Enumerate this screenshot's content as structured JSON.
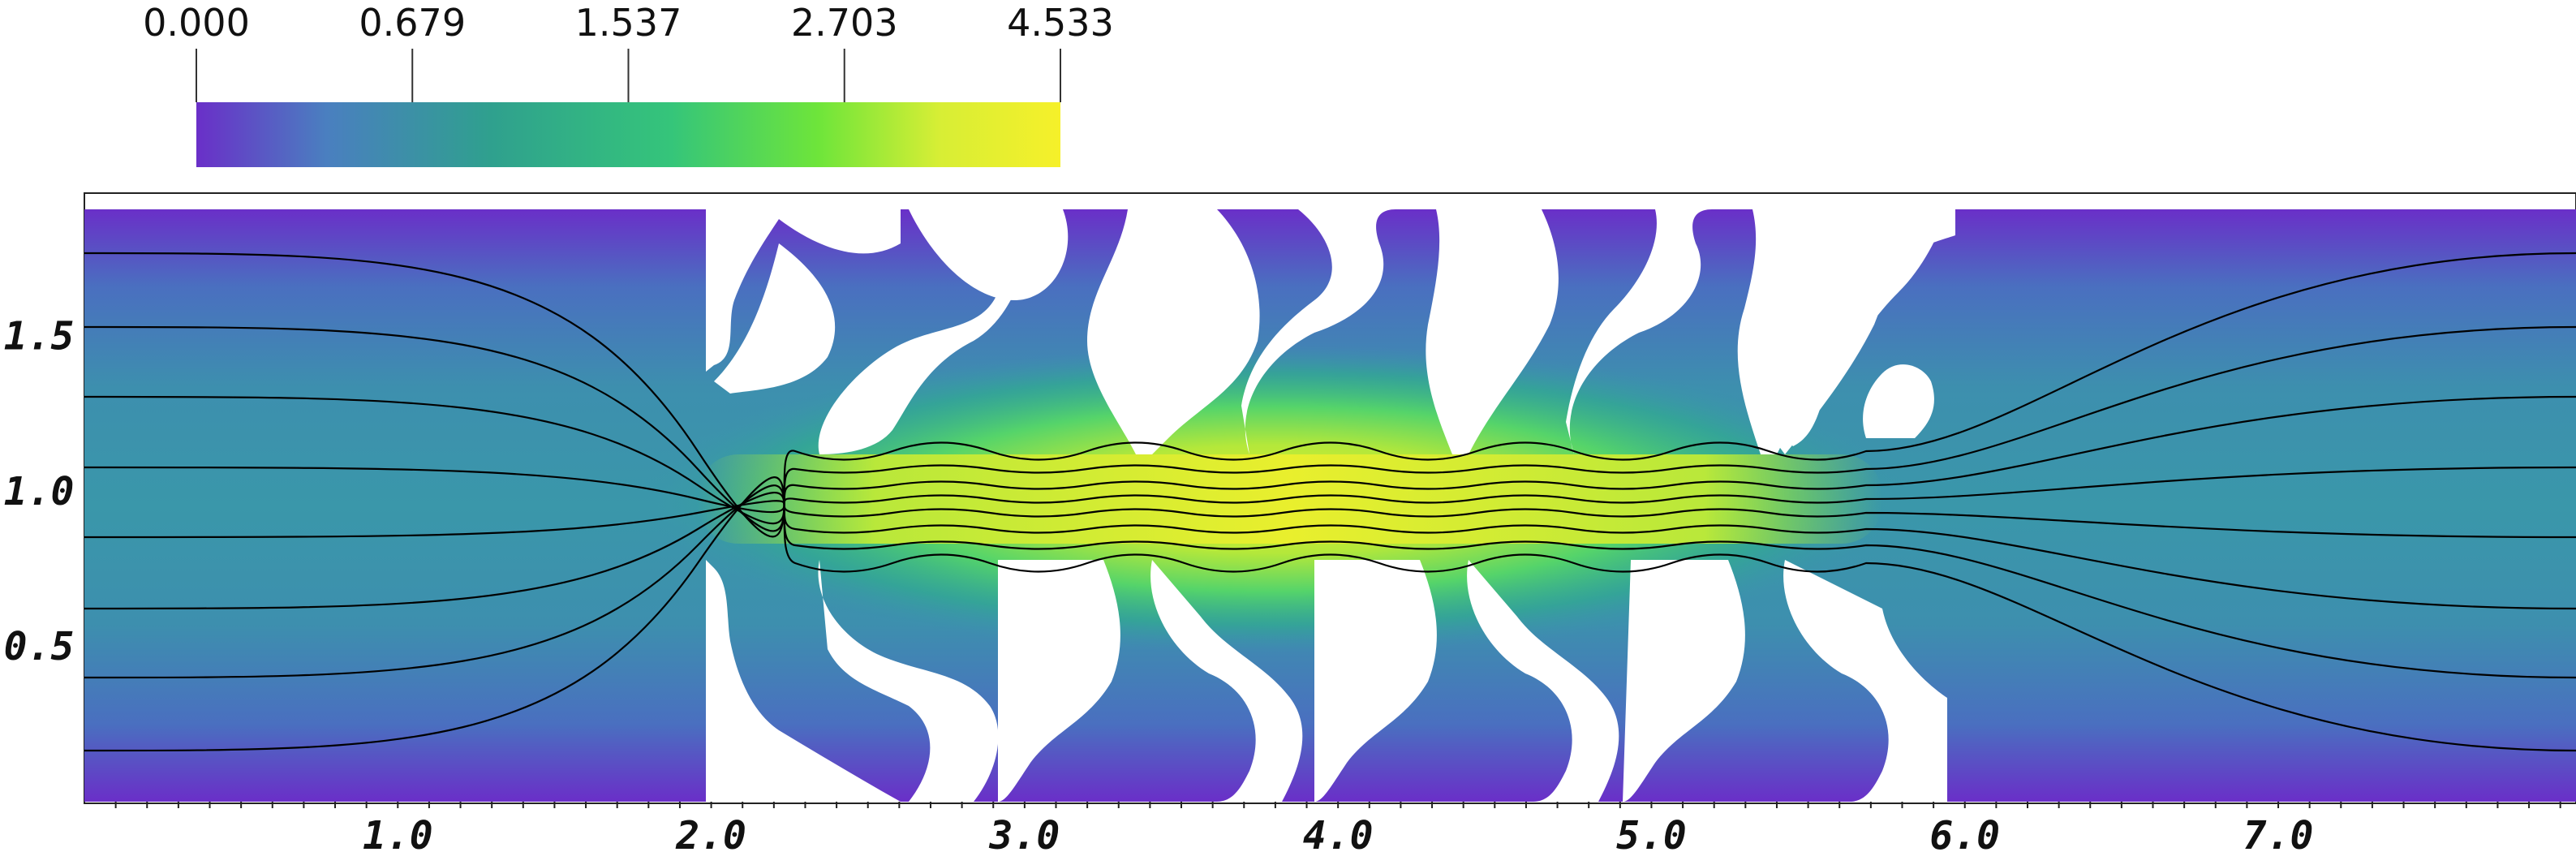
{
  "colorbar": {
    "labels": [
      "0.000",
      "0.679",
      "1.537",
      "2.703",
      "4.533"
    ],
    "values": [
      0.0,
      0.679,
      1.537,
      2.703,
      4.533
    ],
    "min": 0.0,
    "max": 4.533,
    "colormap": [
      "#6a2fc8",
      "#4a7fc0",
      "#2fa08e",
      "#35c57a",
      "#6ee53a",
      "#d7ee35",
      "#f6f02a"
    ]
  },
  "axes": {
    "x_ticks": [
      "1.0",
      "2.0",
      "3.0",
      "4.0",
      "5.0",
      "6.0",
      "7.0"
    ],
    "x_values": [
      1.0,
      2.0,
      3.0,
      4.0,
      5.0,
      6.0,
      7.0
    ],
    "y_ticks": [
      "0.5",
      "1.0",
      "1.5"
    ],
    "y_values": [
      0.5,
      1.0,
      1.5
    ],
    "xlim": [
      0.0,
      7.95
    ],
    "ylim": [
      0.0,
      1.91
    ]
  },
  "colors": {
    "background_field": "#3f8eb0",
    "obstacle": "#ffffff",
    "streamline": "#000000",
    "low_speed": "#6a2fc8",
    "high_speed": "#e6f02f"
  }
}
